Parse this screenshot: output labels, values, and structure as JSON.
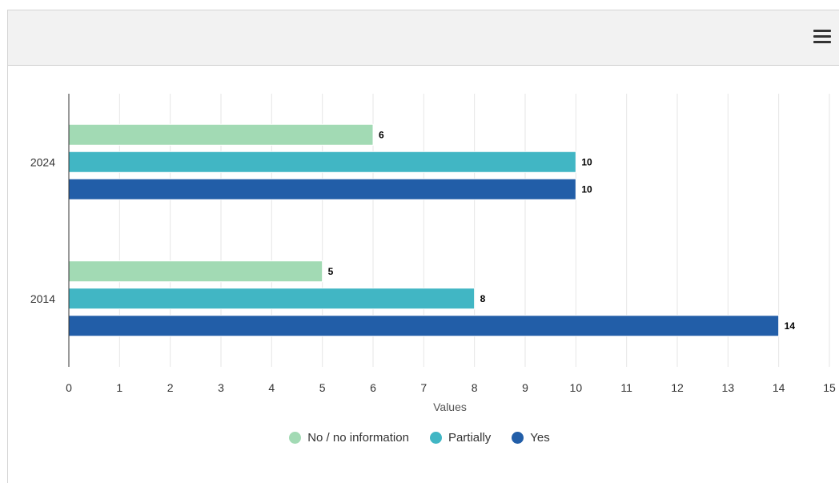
{
  "chart_data": {
    "type": "bar",
    "orientation": "horizontal",
    "categories": [
      "2024",
      "2014"
    ],
    "series": [
      {
        "name": "No / no information",
        "values": [
          6,
          5
        ],
        "color": "#a2dab4"
      },
      {
        "name": "Partially",
        "values": [
          10,
          8
        ],
        "color": "#41b6c4"
      },
      {
        "name": "Yes",
        "values": [
          10,
          14
        ],
        "color": "#225ea8"
      }
    ],
    "xlabel": "Values",
    "ylabel": "",
    "xlim": [
      0,
      15
    ],
    "x_ticks": [
      "0",
      "1",
      "2",
      "3",
      "4",
      "5",
      "6",
      "7",
      "8",
      "9",
      "10",
      "11",
      "12",
      "13",
      "14",
      "15"
    ],
    "grid": true,
    "data_labels": true,
    "legend_position": "bottom-center"
  },
  "toolbar": {
    "menu_icon": "hamburger-menu-icon"
  }
}
